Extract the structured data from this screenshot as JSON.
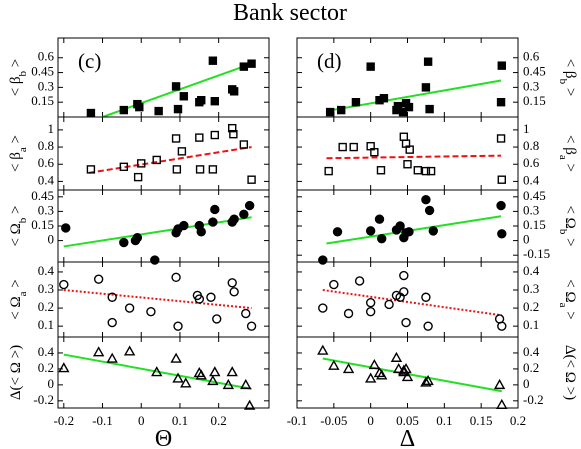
{
  "title": "Bank sector",
  "chart_data": [
    {
      "type": "scatter",
      "panel_label": "(c)",
      "ylabel": [
        "< β",
        "b",
        " >"
      ],
      "marker": "square",
      "filled": true,
      "x": [
        -0.13,
        -0.045,
        -0.01,
        -0.005,
        0.045,
        0.09,
        0.095,
        0.11,
        0.15,
        0.155,
        0.185,
        0.19,
        0.235,
        0.24,
        0.265,
        0.285
      ],
      "values": [
        0.04,
        0.07,
        0.13,
        0.1,
        0.06,
        0.31,
        0.08,
        0.21,
        0.15,
        0.17,
        0.57,
        0.16,
        0.28,
        0.26,
        0.51,
        0.54
      ],
      "fit": {
        "x": [
          -0.1,
          0.285
        ],
        "y": [
          0.0,
          0.54
        ],
        "color": "#22e022",
        "style": "solid"
      },
      "xlim": [
        -0.215,
        0.33
      ],
      "ylim": [
        0,
        0.8
      ],
      "yticks": [
        0.15,
        0.3,
        0.45,
        0.6
      ]
    },
    {
      "type": "scatter",
      "ylabel": [
        "< β",
        "a",
        " >"
      ],
      "marker": "square",
      "filled": false,
      "x": [
        -0.13,
        -0.045,
        -0.008,
        0.0,
        0.04,
        0.09,
        0.092,
        0.105,
        0.15,
        0.152,
        0.185,
        0.19,
        0.235,
        0.238,
        0.265,
        0.285
      ],
      "values": [
        0.54,
        0.57,
        0.45,
        0.61,
        0.65,
        0.9,
        0.54,
        0.75,
        0.91,
        0.54,
        0.54,
        0.94,
        1.02,
        0.95,
        0.83,
        0.42
      ],
      "fit": {
        "x": [
          -0.135,
          0.285
        ],
        "y": [
          0.5,
          0.8
        ],
        "color": "#ee1111",
        "style": "dashed"
      },
      "xlim": [
        -0.215,
        0.33
      ],
      "ylim": [
        0.3,
        1.15
      ],
      "yticks": [
        0.4,
        0.6,
        0.8,
        1
      ]
    },
    {
      "type": "scatter",
      "ylabel": [
        "< Ω",
        "b",
        " >"
      ],
      "marker": "circle",
      "filled": true,
      "x": [
        -0.195,
        -0.045,
        -0.015,
        -0.01,
        0.035,
        0.09,
        0.095,
        0.11,
        0.15,
        0.155,
        0.185,
        0.19,
        0.235,
        0.24,
        0.265,
        0.28
      ],
      "values": [
        0.13,
        -0.02,
        0.0,
        0.03,
        -0.2,
        0.08,
        0.12,
        0.155,
        0.155,
        0.09,
        0.19,
        0.32,
        0.19,
        0.22,
        0.27,
        0.36
      ],
      "fit": {
        "x": [
          -0.2,
          0.285
        ],
        "y": [
          -0.06,
          0.24
        ],
        "color": "#22e022",
        "style": "solid"
      },
      "xlim": [
        -0.215,
        0.33
      ],
      "ylim": [
        -0.22,
        0.52
      ],
      "yticks": [
        0,
        0.15,
        0.3,
        0.45
      ]
    },
    {
      "type": "scatter",
      "ylabel": [
        "< Ω",
        "a",
        " >"
      ],
      "marker": "circle",
      "filled": false,
      "x": [
        -0.2,
        -0.11,
        -0.075,
        -0.075,
        -0.03,
        0.025,
        0.09,
        0.095,
        0.145,
        0.15,
        0.18,
        0.195,
        0.235,
        0.24,
        0.27,
        0.285
      ],
      "values": [
        0.33,
        0.36,
        0.26,
        0.12,
        0.2,
        0.18,
        0.37,
        0.1,
        0.27,
        0.25,
        0.26,
        0.14,
        0.34,
        0.29,
        0.17,
        0.1
      ],
      "fit": {
        "x": [
          -0.2,
          0.285
        ],
        "y": [
          0.3,
          0.2
        ],
        "color": "#ee1111",
        "style": "dotted"
      },
      "xlim": [
        -0.215,
        0.33
      ],
      "ylim": [
        0.04,
        0.455
      ],
      "yticks": [
        0.1,
        0.2,
        0.3,
        0.4
      ]
    },
    {
      "type": "scatter",
      "ylabel": [
        "Δ(< Ω >)"
      ],
      "marker": "triangle",
      "filled": false,
      "xlabel": "Θ",
      "x": [
        -0.2,
        -0.11,
        -0.075,
        -0.03,
        0.04,
        0.09,
        0.095,
        0.115,
        0.15,
        0.155,
        0.185,
        0.19,
        0.225,
        0.235,
        0.27,
        0.28
      ],
      "values": [
        0.21,
        0.41,
        0.33,
        0.42,
        0.16,
        0.33,
        0.08,
        0.02,
        0.15,
        0.12,
        0.05,
        0.16,
        0.0,
        0.16,
        0.0,
        -0.26
      ],
      "fit": {
        "x": [
          -0.2,
          0.285
        ],
        "y": [
          0.38,
          -0.05
        ],
        "color": "#22e022",
        "style": "solid"
      },
      "xlim": [
        -0.215,
        0.33
      ],
      "ylim": [
        -0.29,
        0.6
      ],
      "yticks": [
        -0.2,
        0,
        0.2,
        0.4
      ],
      "xticks": [
        -0.2,
        -0.1,
        0,
        0.1,
        0.2
      ]
    },
    {
      "type": "scatter",
      "panel_label": "(d)",
      "ylabel": [
        "< β",
        "b",
        " >"
      ],
      "marker": "square",
      "filled": true,
      "x": [
        -0.055,
        -0.04,
        -0.02,
        0.0,
        0.012,
        0.018,
        0.035,
        0.037,
        0.044,
        0.048,
        0.052,
        0.075,
        0.078,
        0.08,
        0.177,
        0.178
      ],
      "values": [
        0.05,
        0.07,
        0.15,
        0.51,
        0.17,
        0.19,
        0.07,
        0.11,
        0.05,
        0.14,
        0.1,
        0.3,
        0.56,
        0.08,
        0.15,
        0.52
      ],
      "fit": {
        "x": [
          -0.06,
          0.177
        ],
        "y": [
          0.06,
          0.37
        ],
        "color": "#22e022",
        "style": "solid"
      },
      "xlim": [
        -0.1,
        0.2
      ],
      "ylim": [
        0,
        0.8
      ],
      "yticks": [
        0.15,
        0.3,
        0.45,
        0.6
      ]
    },
    {
      "type": "scatter",
      "ylabel": [
        "< β",
        "a",
        " >"
      ],
      "marker": "square",
      "filled": false,
      "x": [
        -0.057,
        -0.038,
        -0.023,
        0.0,
        0.005,
        0.014,
        0.045,
        0.048,
        0.05,
        0.053,
        0.064,
        0.075,
        0.082,
        0.177,
        0.178
      ],
      "values": [
        0.52,
        0.8,
        0.8,
        0.81,
        0.74,
        0.53,
        0.92,
        0.84,
        0.6,
        0.77,
        0.53,
        0.52,
        0.52,
        0.9,
        0.42
      ],
      "fit": {
        "x": [
          -0.06,
          0.177
        ],
        "y": [
          0.67,
          0.7
        ],
        "color": "#ee1111",
        "style": "dashed"
      },
      "xlim": [
        -0.1,
        0.2
      ],
      "ylim": [
        0.3,
        1.15
      ],
      "yticks": [
        0.4,
        0.6,
        0.8,
        1
      ]
    },
    {
      "type": "scatter",
      "ylabel": [
        "< Ω",
        "b",
        " >"
      ],
      "marker": "circle",
      "filled": true,
      "x": [
        -0.065,
        -0.045,
        0.0,
        0.012,
        0.015,
        0.035,
        0.04,
        0.045,
        0.048,
        0.052,
        0.075,
        0.08,
        0.085,
        0.177,
        0.178
      ],
      "values": [
        -0.2,
        0.09,
        0.1,
        0.22,
        0.02,
        0.11,
        0.15,
        0.03,
        0.08,
        0.09,
        0.42,
        0.31,
        0.1,
        0.36,
        0.07
      ],
      "fit": {
        "x": [
          -0.06,
          0.177
        ],
        "y": [
          -0.03,
          0.25
        ],
        "color": "#22e022",
        "style": "solid"
      },
      "xlim": [
        -0.1,
        0.2
      ],
      "ylim": [
        -0.22,
        0.52
      ],
      "yticks": [
        -0.15,
        0,
        0.15,
        0.3,
        0.45
      ]
    },
    {
      "type": "scatter",
      "ylabel": [
        "< Ω",
        "a",
        " >"
      ],
      "marker": "circle",
      "filled": false,
      "x": [
        -0.065,
        -0.05,
        -0.03,
        -0.015,
        0.0,
        0.0,
        0.025,
        0.035,
        0.04,
        0.045,
        0.045,
        0.048,
        0.075,
        0.078,
        0.175,
        0.178
      ],
      "values": [
        0.2,
        0.33,
        0.17,
        0.35,
        0.18,
        0.23,
        0.22,
        0.27,
        0.26,
        0.38,
        0.29,
        0.12,
        0.26,
        0.1,
        0.14,
        0.1
      ],
      "fit": {
        "x": [
          -0.065,
          0.178
        ],
        "y": [
          0.3,
          0.16
        ],
        "color": "#ee1111",
        "style": "dotted"
      },
      "xlim": [
        -0.1,
        0.2
      ],
      "ylim": [
        0.04,
        0.455
      ],
      "yticks": [
        0.1,
        0.2,
        0.3,
        0.4
      ]
    },
    {
      "type": "scatter",
      "ylabel": [
        "Δ(< Ω >)"
      ],
      "marker": "triangle",
      "filled": false,
      "xlabel": "Δ",
      "x": [
        -0.065,
        -0.05,
        -0.03,
        0.0,
        0.005,
        0.012,
        0.015,
        0.035,
        0.038,
        0.045,
        0.045,
        0.048,
        0.05,
        0.075,
        0.078,
        0.175,
        0.178
      ],
      "values": [
        0.43,
        0.24,
        0.2,
        0.08,
        0.25,
        0.15,
        0.12,
        0.34,
        0.2,
        0.16,
        0.18,
        0.2,
        0.1,
        0.03,
        0.05,
        0.0,
        -0.25
      ],
      "fit": {
        "x": [
          -0.065,
          0.178
        ],
        "y": [
          0.33,
          -0.08
        ],
        "color": "#22e022",
        "style": "solid"
      },
      "xlim": [
        -0.1,
        0.2
      ],
      "ylim": [
        -0.29,
        0.6
      ],
      "yticks": [
        -0.2,
        0,
        0.2,
        0.4
      ],
      "xticks": [
        -0.1,
        -0.05,
        0,
        0.05,
        0.1,
        0.15,
        0.2
      ]
    }
  ]
}
